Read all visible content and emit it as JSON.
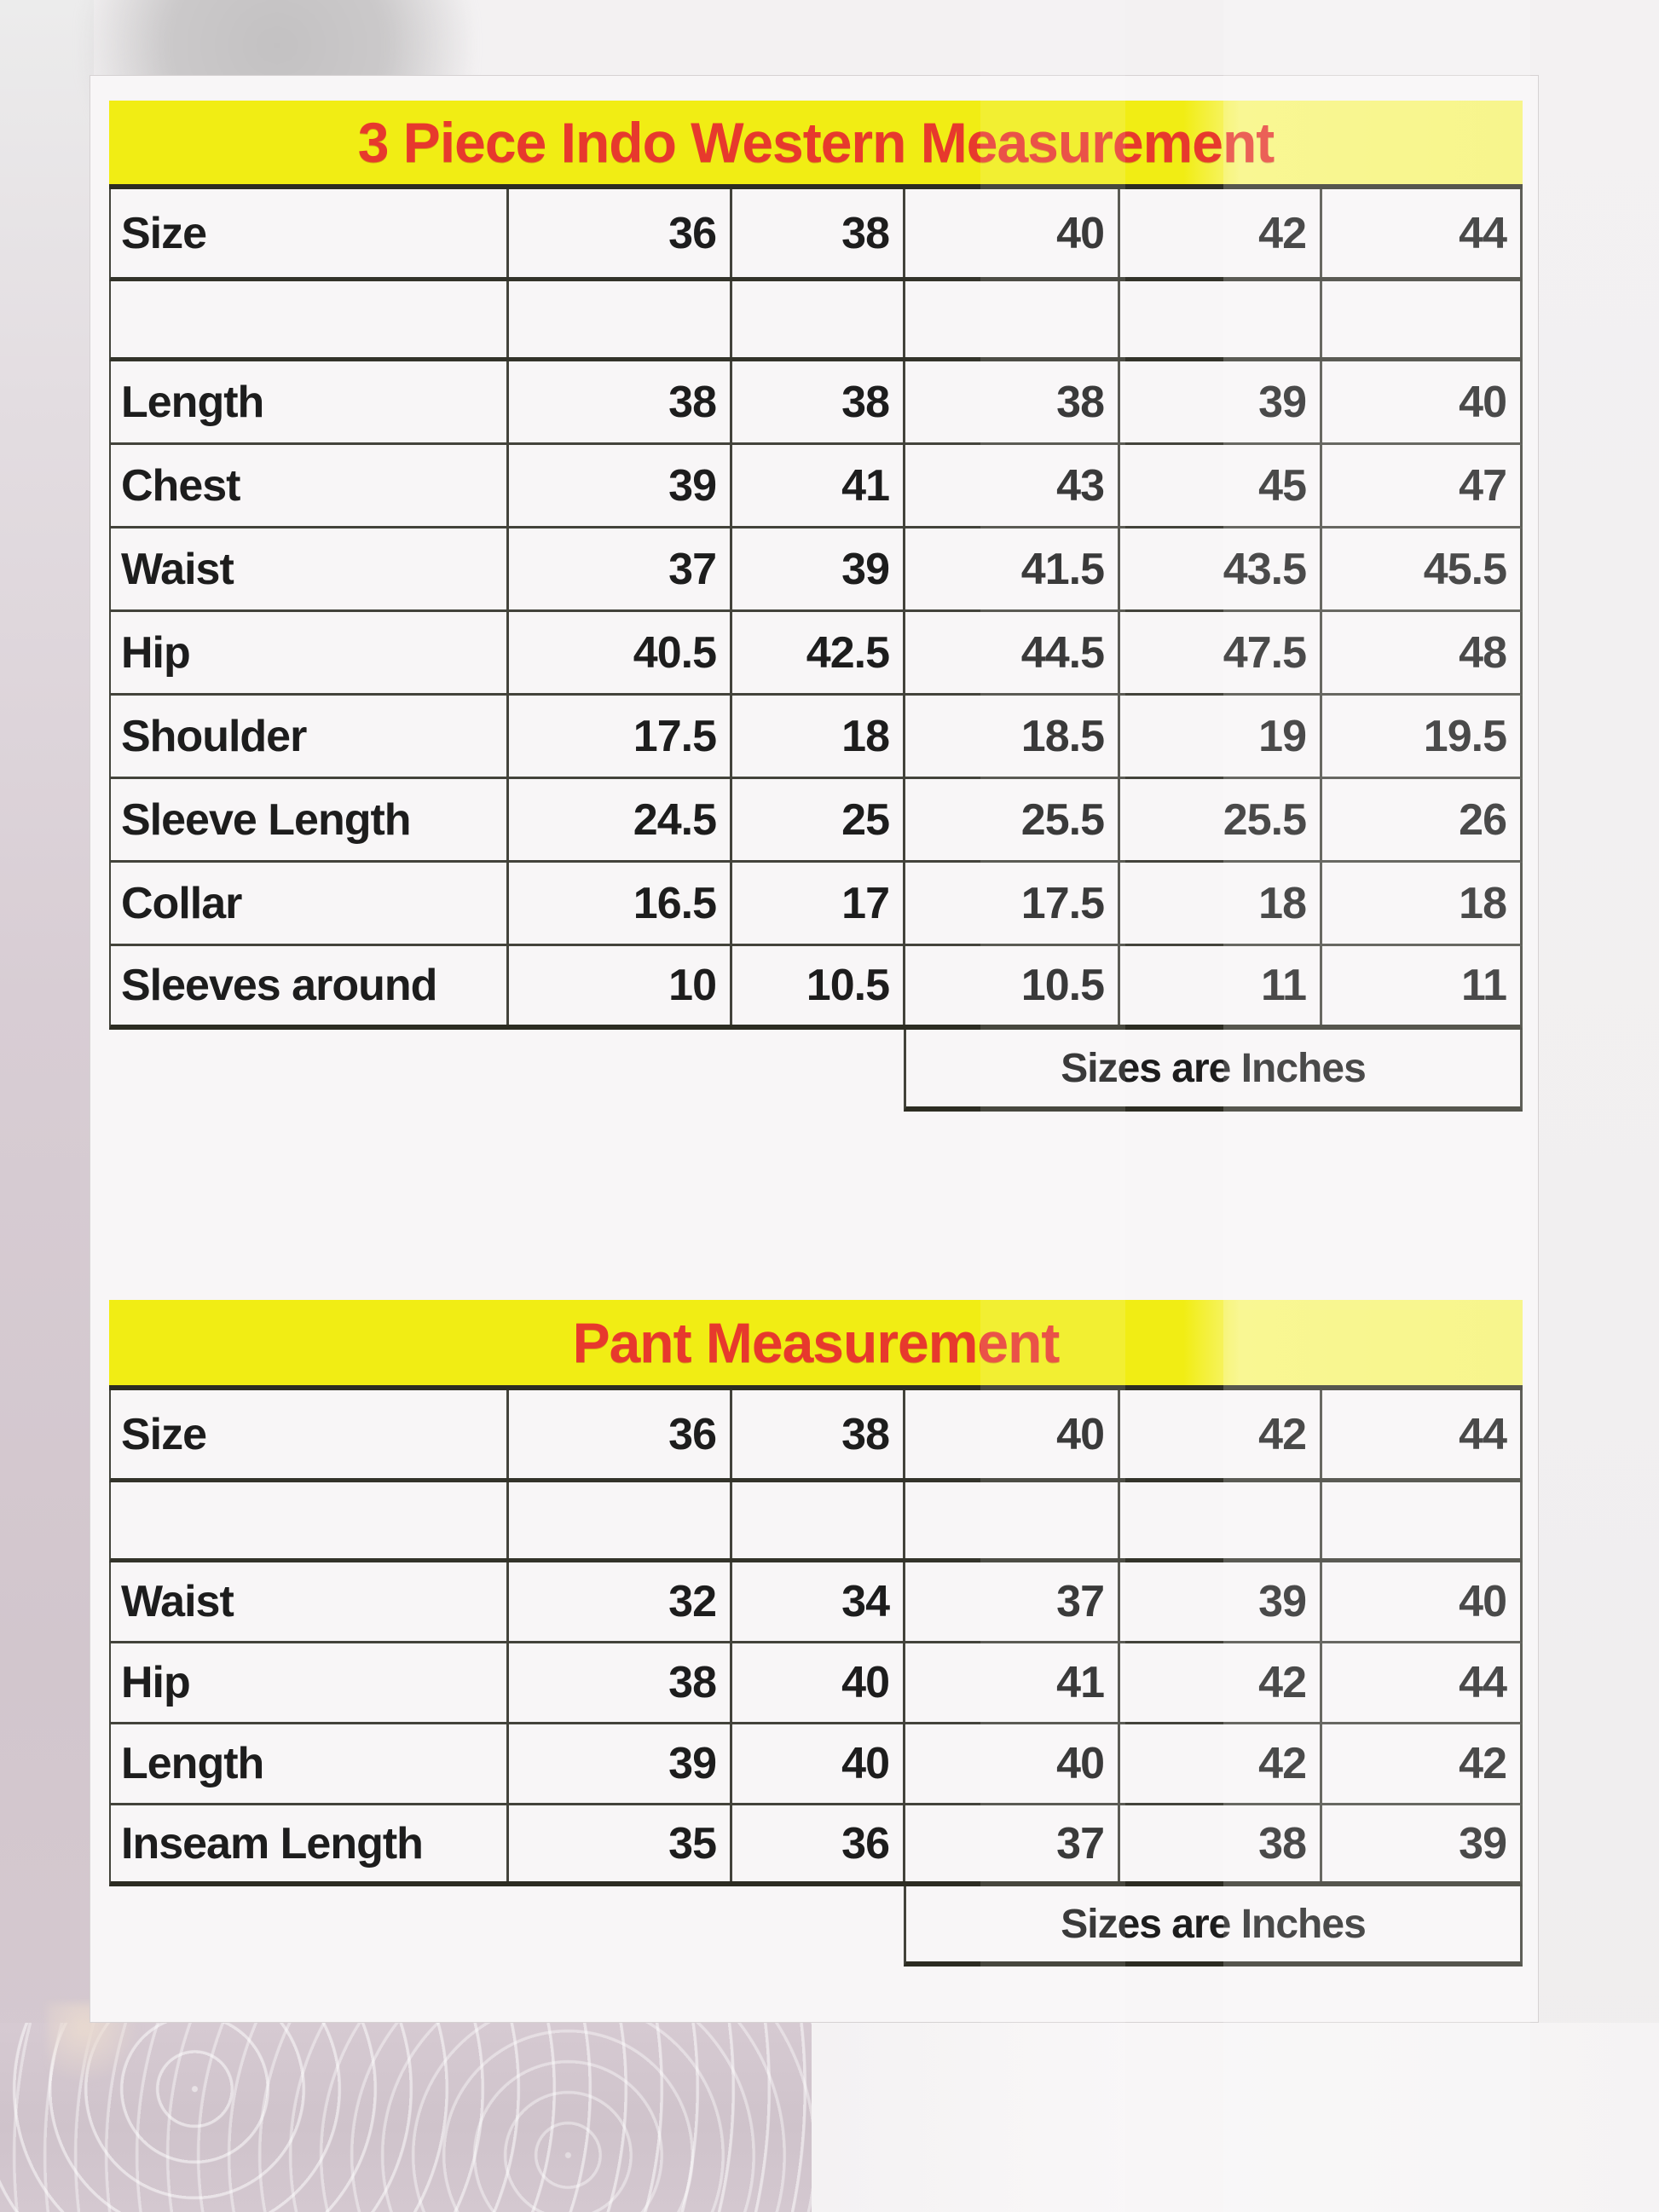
{
  "sheet": {
    "unit_note": "Sizes are Inches"
  },
  "tables": [
    {
      "title": "3 Piece Indo Western Measurement",
      "header": {
        "label": "Size",
        "sizes": [
          "36",
          "38",
          "40",
          "42",
          "44"
        ]
      },
      "rows": [
        {
          "label": "Length",
          "values": [
            "38",
            "38",
            "38",
            "39",
            "40"
          ]
        },
        {
          "label": "Chest",
          "values": [
            "39",
            "41",
            "43",
            "45",
            "47"
          ]
        },
        {
          "label": "Waist",
          "values": [
            "37",
            "39",
            "41.5",
            "43.5",
            "45.5"
          ]
        },
        {
          "label": "Hip",
          "values": [
            "40.5",
            "42.5",
            "44.5",
            "47.5",
            "48"
          ]
        },
        {
          "label": "Shoulder",
          "values": [
            "17.5",
            "18",
            "18.5",
            "19",
            "19.5"
          ]
        },
        {
          "label": "Sleeve Length",
          "values": [
            "24.5",
            "25",
            "25.5",
            "25.5",
            "26"
          ]
        },
        {
          "label": "Collar",
          "values": [
            "16.5",
            "17",
            "17.5",
            "18",
            "18"
          ]
        },
        {
          "label": "Sleeves around",
          "values": [
            "10",
            "10.5",
            "10.5",
            "11",
            "11"
          ]
        }
      ],
      "note": "Sizes are Inches"
    },
    {
      "title": "Pant Measurement",
      "header": {
        "label": "Size",
        "sizes": [
          "36",
          "38",
          "40",
          "42",
          "44"
        ]
      },
      "rows": [
        {
          "label": "Waist",
          "values": [
            "32",
            "34",
            "37",
            "39",
            "40"
          ]
        },
        {
          "label": "Hip",
          "values": [
            "38",
            "40",
            "41",
            "42",
            "44"
          ]
        },
        {
          "label": "Length",
          "values": [
            "39",
            "40",
            "40",
            "42",
            "42"
          ]
        },
        {
          "label": "Inseam Length",
          "values": [
            "35",
            "36",
            "37",
            "38",
            "39"
          ]
        }
      ],
      "note": "Sizes are Inches"
    }
  ],
  "colors": {
    "band_yellow": "#f1ed14",
    "title_red": "#e7392d",
    "cell_text": "#1d1d1d",
    "grid_line": "#43433b",
    "fabric_purple": "#cfc3cb"
  }
}
